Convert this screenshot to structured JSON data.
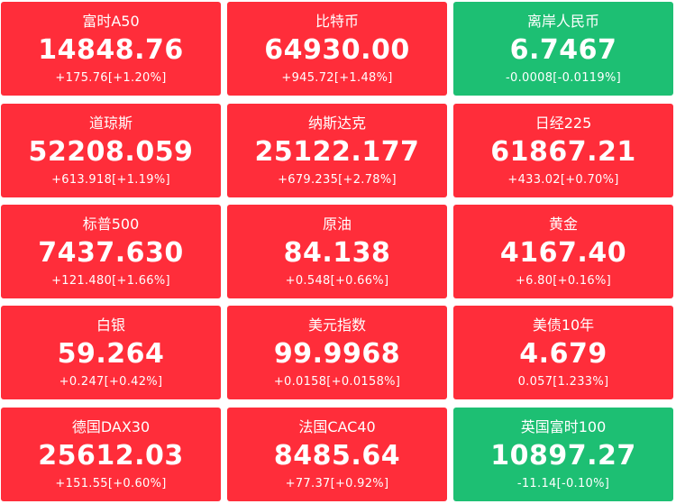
{
  "colors": {
    "up": "#ff2d3a",
    "down": "#1dbf73",
    "text": "#ffffff"
  },
  "tiles": [
    {
      "name": "富时A50",
      "price": "14848.76",
      "change": "+175.76[+1.20%]",
      "trend": "up"
    },
    {
      "name": "比特币",
      "price": "64930.00",
      "change": "+945.72[+1.48%]",
      "trend": "up"
    },
    {
      "name": "离岸人民币",
      "price": "6.7467",
      "change": "-0.0008[-0.0119%]",
      "trend": "down"
    },
    {
      "name": "道琼斯",
      "price": "52208.059",
      "change": "+613.918[+1.19%]",
      "trend": "up"
    },
    {
      "name": "纳斯达克",
      "price": "25122.177",
      "change": "+679.235[+2.78%]",
      "trend": "up"
    },
    {
      "name": "日经225",
      "price": "61867.21",
      "change": "+433.02[+0.70%]",
      "trend": "up"
    },
    {
      "name": "标普500",
      "price": "7437.630",
      "change": "+121.480[+1.66%]",
      "trend": "up"
    },
    {
      "name": "原油",
      "price": "84.138",
      "change": "+0.548[+0.66%]",
      "trend": "up"
    },
    {
      "name": "黄金",
      "price": "4167.40",
      "change": "+6.80[+0.16%]",
      "trend": "up"
    },
    {
      "name": "白银",
      "price": "59.264",
      "change": "+0.247[+0.42%]",
      "trend": "up"
    },
    {
      "name": "美元指数",
      "price": "99.9968",
      "change": "+0.0158[+0.0158%]",
      "trend": "up"
    },
    {
      "name": "美债10年",
      "price": "4.679",
      "change": "0.057[1.233%]",
      "trend": "up"
    },
    {
      "name": "德国DAX30",
      "price": "25612.03",
      "change": "+151.55[+0.60%]",
      "trend": "up"
    },
    {
      "name": "法国CAC40",
      "price": "8485.64",
      "change": "+77.37[+0.92%]",
      "trend": "up"
    },
    {
      "name": "英国富时100",
      "price": "10897.27",
      "change": "-11.14[-0.10%]",
      "trend": "down"
    }
  ]
}
